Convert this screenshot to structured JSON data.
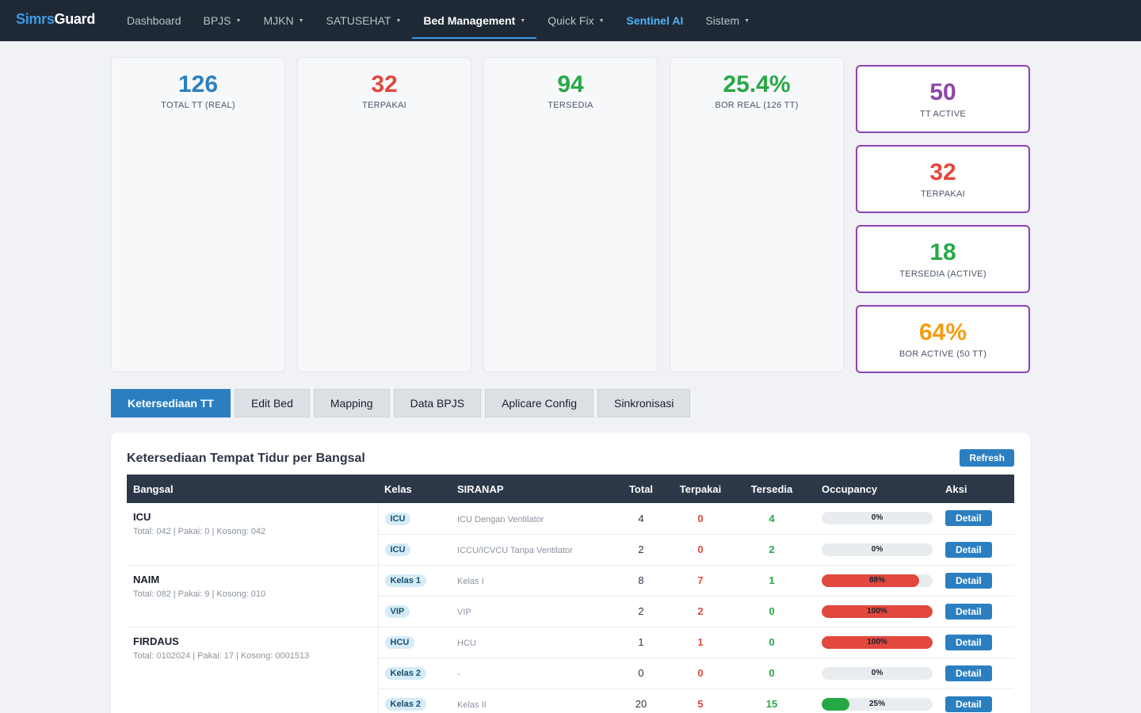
{
  "nav": {
    "brand_part1": "Simrs",
    "brand_part2": "Guard",
    "items": [
      {
        "label": "Dashboard",
        "caret": false
      },
      {
        "label": "BPJS",
        "caret": true
      },
      {
        "label": "MJKN",
        "caret": true
      },
      {
        "label": "SATUSEHAT",
        "caret": true
      },
      {
        "label": "Bed Management",
        "caret": true,
        "active": true
      },
      {
        "label": "Quick Fix",
        "caret": true
      },
      {
        "label": "Sentinel AI",
        "caret": false
      },
      {
        "label": "Sistem",
        "caret": true
      }
    ]
  },
  "stats": [
    {
      "value": "126",
      "label": "TOTAL TT (REAL)",
      "color": "#2b7fc1"
    },
    {
      "value": "32",
      "label": "TERPAKAI",
      "color": "#e2483d"
    },
    {
      "value": "94",
      "label": "TERSEDIA",
      "color": "#27a846"
    },
    {
      "value": "25.4%",
      "label": "BOR REAL (126 TT)",
      "color": "#27a846"
    }
  ],
  "side_stats": [
    {
      "value": "50",
      "label": "TT ACTIVE",
      "color": "#8e44ad"
    },
    {
      "value": "32",
      "label": "TERPAKAI",
      "color": "#e2483d"
    },
    {
      "value": "18",
      "label": "TERSEDIA (ACTIVE)",
      "color": "#27a846"
    },
    {
      "value": "64%",
      "label": "BOR ACTIVE (50 TT)",
      "color": "#f39c12"
    }
  ],
  "tabs": [
    {
      "label": "Ketersediaan TT",
      "active": true
    },
    {
      "label": "Edit Bed"
    },
    {
      "label": "Mapping"
    },
    {
      "label": "Data BPJS"
    },
    {
      "label": "Aplicare Config"
    },
    {
      "label": "Sinkronisasi"
    }
  ],
  "panel": {
    "title": "Ketersediaan Tempat Tidur per Bangsal",
    "refresh_label": "Refresh"
  },
  "table": {
    "headers": [
      "Bangsal",
      "Kelas",
      "SIRANAP",
      "Total",
      "Terpakai",
      "Tersedia",
      "Occupancy",
      "Aksi"
    ],
    "detail_label": "Detail",
    "wards": [
      {
        "name": "ICU",
        "summary": "Total: 042 | Pakai: 0 | Kosong: 042",
        "rows": [
          {
            "kelas": "ICU",
            "siranap": "ICU Dengan Ventilator",
            "total": "4",
            "terpakai": "0",
            "tersedia": "4",
            "occupancy": 0,
            "occ_label": "0%"
          },
          {
            "kelas": "ICU",
            "siranap": "ICCU/ICVCU Tanpa Ventilator",
            "total": "2",
            "terpakai": "0",
            "tersedia": "2",
            "occupancy": 0,
            "occ_label": "0%"
          }
        ]
      },
      {
        "name": "NAIM",
        "summary": "Total: 082 | Pakai: 9 | Kosong: 010",
        "rows": [
          {
            "kelas": "Kelas 1",
            "siranap": "Kelas I",
            "total": "8",
            "terpakai": "7",
            "tersedia": "1",
            "occupancy": 88,
            "occ_label": "88%"
          },
          {
            "kelas": "VIP",
            "siranap": "VIP",
            "total": "2",
            "terpakai": "2",
            "tersedia": "0",
            "occupancy": 100,
            "occ_label": "100%"
          }
        ]
      },
      {
        "name": "FIRDAUS",
        "summary": "Total: 0102024 | Pakai: 17 | Kosong: 0001513",
        "rows": [
          {
            "kelas": "HCU",
            "siranap": "HCU",
            "total": "1",
            "terpakai": "1",
            "tersedia": "0",
            "occupancy": 100,
            "occ_label": "100%"
          },
          {
            "kelas": "Kelas 2",
            "siranap": "-",
            "total": "0",
            "terpakai": "0",
            "tersedia": "0",
            "occupancy": 0,
            "occ_label": "0%"
          },
          {
            "kelas": "Kelas 2",
            "siranap": "Kelas II",
            "total": "20",
            "terpakai": "5",
            "tersedia": "15",
            "occupancy": 25,
            "occ_label": "25%"
          }
        ]
      }
    ]
  },
  "colors": {
    "occ_high": "#e2483d",
    "occ_low": "#27a846",
    "accent": "#2b7fc1"
  }
}
